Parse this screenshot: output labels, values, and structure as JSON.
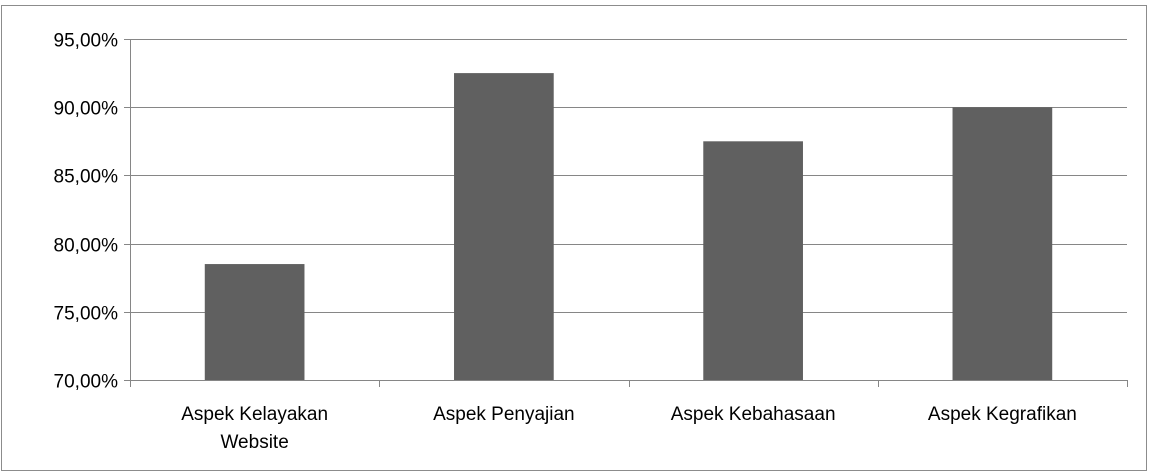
{
  "chart_data": {
    "type": "bar",
    "title": "",
    "xlabel": "",
    "ylabel": "",
    "categories": [
      [
        "Aspek Kelayakan",
        "Website"
      ],
      [
        "Aspek Penyajian"
      ],
      [
        "Aspek Kebahasaan"
      ],
      [
        "Aspek Kegrafikan"
      ]
    ],
    "values": [
      78.5,
      92.5,
      87.5,
      90.0
    ],
    "value_unit": "%",
    "ylim": [
      70,
      95
    ],
    "yticks": [
      70,
      75,
      80,
      85,
      90,
      95
    ],
    "ytick_labels": [
      "70,00%",
      "75,00%",
      "80,00%",
      "85,00%",
      "90,00%",
      "95,00%"
    ],
    "grid": true,
    "legend": "none",
    "colors": {
      "bar": "#606060",
      "grid": "#868686",
      "axis": "#868686"
    }
  }
}
